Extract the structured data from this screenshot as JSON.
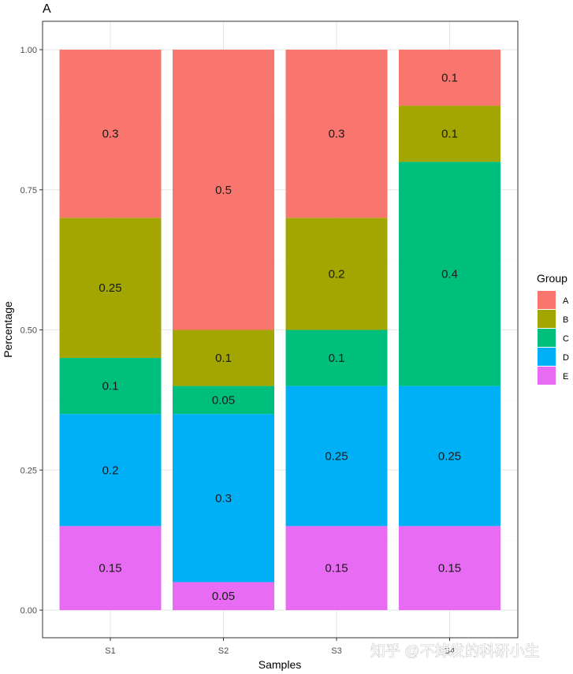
{
  "chart_data": {
    "type": "bar",
    "stacked": true,
    "tag": "A",
    "xlabel": "Samples",
    "ylabel": "Percentage",
    "ylim": [
      0,
      1
    ],
    "y_ticks": [
      "0.00",
      "0.25",
      "0.50",
      "0.75",
      "1.00"
    ],
    "categories": [
      "S1",
      "S2",
      "S3",
      "S4"
    ],
    "legend_title": "Group",
    "legend_position": "right",
    "grid": true,
    "series": [
      {
        "name": "A",
        "color": "#F8766D",
        "values": [
          0.3,
          0.5,
          0.3,
          0.1
        ],
        "labels": [
          "0.3",
          "0.5",
          "0.3",
          "0.1"
        ]
      },
      {
        "name": "B",
        "color": "#A3A500",
        "values": [
          0.25,
          0.1,
          0.2,
          0.1
        ],
        "labels": [
          "0.25",
          "0.1",
          "0.2",
          "0.1"
        ]
      },
      {
        "name": "C",
        "color": "#00BF7D",
        "values": [
          0.1,
          0.05,
          0.1,
          0.4
        ],
        "labels": [
          "0.1",
          "0.05",
          "0.1",
          "0.4"
        ]
      },
      {
        "name": "D",
        "color": "#00B0F6",
        "values": [
          0.2,
          0.3,
          0.25,
          0.25
        ],
        "labels": [
          "0.2",
          "0.3",
          "0.25",
          "0.25"
        ]
      },
      {
        "name": "E",
        "color": "#E76BF3",
        "values": [
          0.15,
          0.05,
          0.15,
          0.15
        ],
        "labels": [
          "0.15",
          "0.05",
          "0.15",
          "0.15"
        ]
      }
    ]
  },
  "watermark": "知乎 @不掉发的科研小生"
}
